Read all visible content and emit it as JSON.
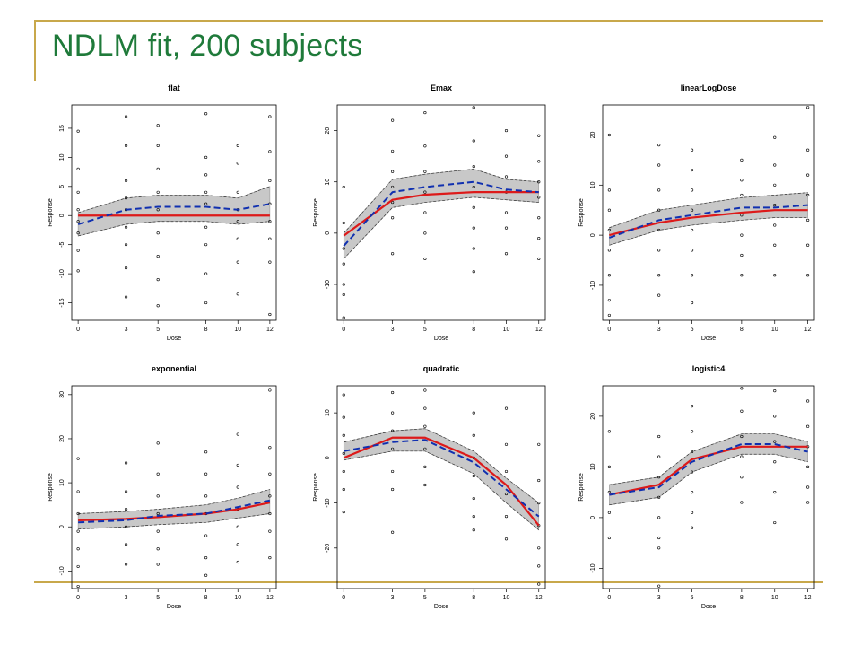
{
  "slide": {
    "title": "NDLM fit, 200 subjects",
    "title_color": "#1f7a3a",
    "accent_color": "#c8a84b"
  },
  "colors": {
    "mean_line": "#dd1a1a",
    "fit_line": "#1030b0",
    "band": "#c8c8c8",
    "points": "#000000"
  },
  "chart_data": [
    {
      "type": "scatter",
      "title": "flat",
      "xlabel": "Dose",
      "ylabel": "Response",
      "doses": [
        0,
        3,
        5,
        8,
        10,
        12
      ],
      "xticks": [
        0,
        3,
        5,
        8,
        10,
        12
      ],
      "yticks": [
        -15,
        -10,
        -5,
        0,
        5,
        10,
        15
      ],
      "ylim": [
        -18,
        19
      ],
      "true_mean": [
        0,
        0,
        0,
        0,
        0,
        0
      ],
      "fit": [
        -1.5,
        1,
        1.5,
        1.5,
        1,
        2
      ],
      "band_lower": [
        -3.5,
        -1.5,
        -1,
        -1,
        -1.5,
        -1
      ],
      "band_upper": [
        0.5,
        3,
        3.5,
        3.5,
        3,
        5
      ],
      "points": [
        [
          14.5,
          8,
          4,
          1,
          -1,
          -3,
          -6,
          -9.5
        ],
        [
          17,
          12,
          6,
          3,
          1,
          -2,
          -5,
          -9,
          -14
        ],
        [
          15.5,
          12,
          8,
          4,
          1,
          -3,
          -7,
          -11,
          -15.5
        ],
        [
          17.5,
          10,
          7,
          4,
          2,
          -2,
          -5,
          -10,
          -15
        ],
        [
          12,
          9,
          4,
          1,
          -1,
          -4,
          -8,
          -13.5
        ],
        [
          17,
          11,
          6,
          2,
          -1,
          -4,
          -8,
          -17
        ]
      ]
    },
    {
      "type": "scatter",
      "title": "Emax",
      "xlabel": "Dose",
      "ylabel": "Response",
      "doses": [
        0,
        3,
        5,
        8,
        10,
        12
      ],
      "xticks": [
        0,
        3,
        5,
        8,
        10,
        12
      ],
      "yticks": [
        -10,
        0,
        10,
        20
      ],
      "ylim": [
        -17,
        25
      ],
      "true_mean": [
        -0.5,
        6.5,
        7.5,
        8,
        8,
        8
      ],
      "fit": [
        -2.5,
        8,
        9,
        10,
        8.5,
        8
      ],
      "band_lower": [
        -5,
        5,
        6,
        7,
        6.5,
        6
      ],
      "band_upper": [
        0,
        10.5,
        11.5,
        12.5,
        10.5,
        10
      ],
      "points": [
        [
          9,
          2,
          -3,
          -6,
          -10,
          -12,
          -16.5
        ],
        [
          22,
          16,
          12,
          9,
          6,
          3,
          -4
        ],
        [
          23.5,
          17,
          12,
          8,
          4,
          0,
          -5
        ],
        [
          24.5,
          18,
          13,
          9,
          5,
          1,
          -3,
          -7.5
        ],
        [
          20,
          15,
          11,
          8,
          4,
          1,
          -4
        ],
        [
          19,
          14,
          10,
          7,
          3,
          -1,
          -5
        ]
      ]
    },
    {
      "type": "scatter",
      "title": "linearLogDose",
      "xlabel": "Dose",
      "ylabel": "Response",
      "doses": [
        0,
        3,
        5,
        8,
        10,
        12
      ],
      "xticks": [
        0,
        3,
        5,
        8,
        10,
        12
      ],
      "yticks": [
        -10,
        0,
        10,
        20
      ],
      "ylim": [
        -17,
        26
      ],
      "true_mean": [
        0,
        2.5,
        3.5,
        4.5,
        5,
        5
      ],
      "fit": [
        -0.5,
        3,
        4,
        5.5,
        5.5,
        6
      ],
      "band_lower": [
        -2,
        1,
        2,
        3,
        3.5,
        3.5
      ],
      "band_upper": [
        1.5,
        5,
        6,
        7.5,
        8,
        8.5
      ],
      "points": [
        [
          20,
          9,
          5,
          1,
          -3,
          -8,
          -13,
          -16
        ],
        [
          18,
          14,
          9,
          5,
          1,
          -3,
          -8,
          -12
        ],
        [
          17,
          13,
          9,
          5,
          1,
          -3,
          -8,
          -13.5
        ],
        [
          15,
          11,
          8,
          4,
          0,
          -4,
          -8
        ],
        [
          19.5,
          14,
          10,
          6,
          2,
          -2,
          -8
        ],
        [
          25.5,
          17,
          12,
          8,
          3,
          -2,
          -8
        ]
      ]
    },
    {
      "type": "scatter",
      "title": "exponential",
      "xlabel": "Dose",
      "ylabel": "Response",
      "doses": [
        0,
        3,
        5,
        8,
        10,
        12
      ],
      "xticks": [
        0,
        3,
        5,
        8,
        10,
        12
      ],
      "yticks": [
        -10,
        0,
        10,
        20,
        30
      ],
      "ylim": [
        -14,
        32
      ],
      "true_mean": [
        1.5,
        1.8,
        2.2,
        3,
        4,
        5.5
      ],
      "fit": [
        1,
        1.5,
        2.5,
        3,
        4.5,
        6
      ],
      "band_lower": [
        -0.5,
        0,
        0.5,
        1,
        2,
        3
      ],
      "band_upper": [
        3,
        3.5,
        4,
        5,
        6.5,
        8.5
      ],
      "points": [
        [
          15.5,
          8,
          3,
          -1,
          -5,
          -9,
          -13.5
        ],
        [
          14.5,
          8,
          4,
          0,
          -4,
          -8.5
        ],
        [
          19,
          12,
          7,
          3,
          -1,
          -5,
          -8.5
        ],
        [
          17,
          12,
          7,
          3,
          -2,
          -7,
          -11
        ],
        [
          21,
          14,
          9,
          4,
          0,
          -4,
          -8
        ],
        [
          31,
          18,
          12,
          7,
          3,
          -1,
          -7
        ]
      ]
    },
    {
      "type": "scatter",
      "title": "quadratic",
      "xlabel": "Dose",
      "ylabel": "Response",
      "doses": [
        0,
        3,
        5,
        8,
        10,
        12
      ],
      "xticks": [
        0,
        3,
        5,
        8,
        10,
        12
      ],
      "yticks": [
        -20,
        -10,
        0,
        10
      ],
      "ylim": [
        -29,
        16
      ],
      "true_mean": [
        0,
        4.5,
        4.5,
        0,
        -6,
        -15
      ],
      "fit": [
        1.5,
        3.5,
        4,
        -1,
        -7,
        -13
      ],
      "band_lower": [
        -0.5,
        1.5,
        1.5,
        -3.5,
        -10,
        -16
      ],
      "band_upper": [
        3.5,
        6,
        6.5,
        1.5,
        -4.5,
        -10
      ],
      "points": [
        [
          14,
          9,
          5,
          1,
          -3,
          -7,
          -12
        ],
        [
          14.5,
          10,
          6,
          2,
          -3,
          -7,
          -16.5
        ],
        [
          15,
          11,
          7,
          2,
          -2,
          -6
        ],
        [
          10,
          5,
          0,
          -4,
          -9,
          -13,
          -16
        ],
        [
          11,
          3,
          -3,
          -8,
          -13,
          -18
        ],
        [
          3,
          -5,
          -10,
          -15,
          -20,
          -24,
          -28
        ]
      ]
    },
    {
      "type": "scatter",
      "title": "logistic4",
      "xlabel": "Dose",
      "ylabel": "Response",
      "doses": [
        0,
        3,
        5,
        8,
        10,
        12
      ],
      "xticks": [
        0,
        3,
        5,
        8,
        10,
        12
      ],
      "yticks": [
        -10,
        0,
        10,
        20
      ],
      "ylim": [
        -14,
        26
      ],
      "true_mean": [
        4.5,
        6.5,
        11.5,
        14,
        14,
        14
      ],
      "fit": [
        4.5,
        6,
        11,
        14.5,
        14.5,
        13
      ],
      "band_lower": [
        2.5,
        4,
        9,
        12.5,
        12.5,
        11
      ],
      "band_upper": [
        6.5,
        8,
        13,
        16.5,
        16.5,
        15
      ],
      "points": [
        [
          17,
          10,
          5,
          1,
          -4
        ],
        [
          16,
          12,
          8,
          4,
          0,
          -4,
          -6,
          -13.5
        ],
        [
          22,
          17,
          13,
          9,
          5,
          1,
          -2
        ],
        [
          25.5,
          21,
          16,
          12,
          8,
          3
        ],
        [
          25,
          20,
          15,
          11,
          5,
          -1
        ],
        [
          23,
          18,
          14,
          10,
          6,
          3
        ]
      ]
    }
  ]
}
